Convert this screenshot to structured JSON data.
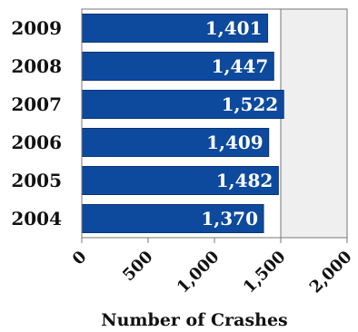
{
  "chart_data": {
    "type": "bar",
    "orientation": "horizontal",
    "categories": [
      "2009",
      "2008",
      "2007",
      "2006",
      "2005",
      "2004"
    ],
    "values": [
      1401,
      1447,
      1522,
      1409,
      1482,
      1370
    ],
    "value_labels": [
      "1,401",
      "1,447",
      "1,522",
      "1,409",
      "1,482",
      "1,370"
    ],
    "xlabel": "Number of Crashes",
    "xlim": [
      0,
      2000
    ],
    "x_ticks": [
      0,
      500,
      1000,
      1500,
      2000
    ],
    "x_tick_labels": [
      "0",
      "500",
      "1,000",
      "1,500",
      "2,000"
    ],
    "shaded_region": [
      1500,
      2000
    ],
    "colors": {
      "bar": "#0d4a9e",
      "bar_border": "#0a3576",
      "shade": "#efefef",
      "frame": "#777777"
    }
  }
}
